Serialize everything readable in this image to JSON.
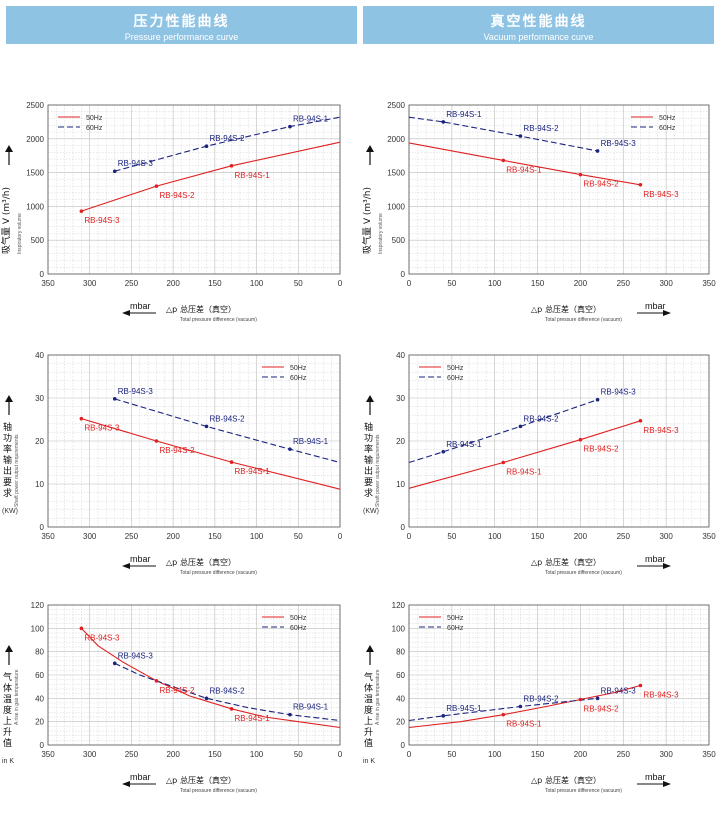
{
  "headers": {
    "left": {
      "zh": "压力性能曲线",
      "en": "Pressure performance curve"
    },
    "right": {
      "zh": "真空性能曲线",
      "en": "Vacuum performance curve"
    }
  },
  "colors": {
    "s50": "#e02020",
    "s60": "#1a237e",
    "grid": "#bdbdbd",
    "header": "#8fc3e4"
  },
  "chart_data": [
    {
      "id": "p1",
      "type": "line",
      "reversed_x": true,
      "xlim": [
        350,
        0
      ],
      "xticks": [
        350,
        300,
        250,
        200,
        150,
        100,
        50,
        0
      ],
      "ylim": [
        0,
        2500
      ],
      "yticks": [
        0,
        500,
        1000,
        1500,
        2000,
        2500
      ],
      "ylabel_zh": "吸气量 V (m³/h)",
      "ylabel_en": "Inspiratory volume",
      "xunit": "mbar",
      "xlabel_symbol": "△p",
      "xlabel_zh": "总压差（真空）",
      "xlabel_en": "Total pressure difference (vacuum)",
      "legend_pos": "top-left",
      "series": [
        {
          "name": "50Hz",
          "style": "solid",
          "points": [
            [
              310,
              930
            ],
            [
              220,
              1300
            ],
            [
              130,
              1600
            ],
            [
              0,
              1950
            ]
          ]
        },
        {
          "name": "60Hz",
          "style": "dashed",
          "points": [
            [
              270,
              1520
            ],
            [
              160,
              1890
            ],
            [
              60,
              2180
            ],
            [
              0,
              2320
            ]
          ]
        }
      ],
      "markers": [
        {
          "series": 0,
          "x": 310,
          "y": 930,
          "label": "RB-94S-3"
        },
        {
          "series": 0,
          "x": 220,
          "y": 1300,
          "label": "RB-94S-2"
        },
        {
          "series": 0,
          "x": 130,
          "y": 1600,
          "label": "RB-94S-1"
        },
        {
          "series": 1,
          "x": 270,
          "y": 1520,
          "label": "RB-94S-3"
        },
        {
          "series": 1,
          "x": 160,
          "y": 1890,
          "label": "RB-94S-2"
        },
        {
          "series": 1,
          "x": 60,
          "y": 2180,
          "label": "RB-94S-1"
        }
      ]
    },
    {
      "id": "v1",
      "type": "line",
      "reversed_x": false,
      "xlim": [
        0,
        350
      ],
      "xticks": [
        0,
        50,
        100,
        150,
        200,
        250,
        300,
        350
      ],
      "ylim": [
        0,
        2500
      ],
      "yticks": [
        0,
        500,
        1000,
        1500,
        2000,
        2500
      ],
      "ylabel_zh": "吸气量 V (m³/h)",
      "ylabel_en": "Inspiratory volume",
      "xunit": "mbar",
      "xlabel_symbol": "△p",
      "xlabel_zh": "总压差（真空）",
      "xlabel_en": "Total pressure difference (vacuum)",
      "legend_pos": "top-right",
      "series": [
        {
          "name": "50Hz",
          "style": "solid",
          "points": [
            [
              0,
              1940
            ],
            [
              110,
              1680
            ],
            [
              200,
              1470
            ],
            [
              270,
              1320
            ]
          ]
        },
        {
          "name": "60Hz",
          "style": "dashed",
          "points": [
            [
              0,
              2320
            ],
            [
              40,
              2250
            ],
            [
              130,
              2040
            ],
            [
              220,
              1820
            ]
          ]
        }
      ],
      "markers": [
        {
          "series": 0,
          "x": 110,
          "y": 1680,
          "label": "RB-94S-1"
        },
        {
          "series": 0,
          "x": 200,
          "y": 1470,
          "label": "RB-94S-2"
        },
        {
          "series": 0,
          "x": 270,
          "y": 1320,
          "label": "RB-94S-3"
        },
        {
          "series": 1,
          "x": 40,
          "y": 2250,
          "label": "RB-94S-1"
        },
        {
          "series": 1,
          "x": 130,
          "y": 2040,
          "label": "RB-94S-2"
        },
        {
          "series": 1,
          "x": 220,
          "y": 1820,
          "label": "RB-94S-3"
        }
      ]
    },
    {
      "id": "p2",
      "type": "line",
      "reversed_x": true,
      "xlim": [
        350,
        0
      ],
      "xticks": [
        350,
        300,
        250,
        200,
        150,
        100,
        50,
        0
      ],
      "ylim": [
        0,
        40
      ],
      "yticks": [
        0,
        10,
        20,
        30,
        40
      ],
      "ylabel_zh": "轴功率输出要求",
      "ylabel_en": "Shaft power output requirements",
      "yunit": "(KW)",
      "xunit": "mbar",
      "xlabel_symbol": "△p",
      "xlabel_zh": "总压差（真空）",
      "xlabel_en": "Total pressure difference (vacuum)",
      "legend_pos": "top-right",
      "series": [
        {
          "name": "50Hz",
          "style": "solid",
          "points": [
            [
              310,
              25.2
            ],
            [
              220,
              20
            ],
            [
              130,
              15.1
            ],
            [
              0,
              8.8
            ]
          ]
        },
        {
          "name": "60Hz",
          "style": "dashed",
          "points": [
            [
              270,
              29.8
            ],
            [
              160,
              23.4
            ],
            [
              60,
              18.1
            ],
            [
              0,
              15
            ]
          ]
        }
      ],
      "markers": [
        {
          "series": 0,
          "x": 310,
          "y": 25.2,
          "label": "RB-94S-3"
        },
        {
          "series": 0,
          "x": 220,
          "y": 20,
          "label": "RB-94S-2"
        },
        {
          "series": 0,
          "x": 130,
          "y": 15.1,
          "label": "RB-94S-1"
        },
        {
          "series": 1,
          "x": 270,
          "y": 29.8,
          "label": "RB-94S-3"
        },
        {
          "series": 1,
          "x": 160,
          "y": 23.4,
          "label": "RB-94S-2"
        },
        {
          "series": 1,
          "x": 60,
          "y": 18.1,
          "label": "RB-94S-1"
        }
      ]
    },
    {
      "id": "v2",
      "type": "line",
      "reversed_x": false,
      "xlim": [
        0,
        350
      ],
      "xticks": [
        0,
        50,
        100,
        150,
        200,
        250,
        300,
        350
      ],
      "ylim": [
        0,
        40
      ],
      "yticks": [
        0,
        10,
        20,
        30,
        40
      ],
      "ylabel_zh": "轴功率输出要求",
      "ylabel_en": "Shaft power output requirements",
      "yunit": "(KW)",
      "xunit": "mbar",
      "xlabel_symbol": "△p",
      "xlabel_zh": "总压差（真空）",
      "xlabel_en": "Total pressure difference (vacuum)",
      "legend_pos": "top-left",
      "series": [
        {
          "name": "50Hz",
          "style": "solid",
          "points": [
            [
              0,
              9
            ],
            [
              110,
              15
            ],
            [
              200,
              20.3
            ],
            [
              270,
              24.7
            ]
          ]
        },
        {
          "name": "60Hz",
          "style": "dashed",
          "points": [
            [
              0,
              15
            ],
            [
              40,
              17.5
            ],
            [
              130,
              23.4
            ],
            [
              220,
              29.6
            ]
          ]
        }
      ],
      "markers": [
        {
          "series": 0,
          "x": 110,
          "y": 15,
          "label": "RB-94S-1"
        },
        {
          "series": 0,
          "x": 200,
          "y": 20.3,
          "label": "RB-94S-2"
        },
        {
          "series": 0,
          "x": 270,
          "y": 24.7,
          "label": "RB-94S-3"
        },
        {
          "series": 1,
          "x": 40,
          "y": 17.5,
          "label": "RB-94S-1"
        },
        {
          "series": 1,
          "x": 130,
          "y": 23.4,
          "label": "RB-94S-2"
        },
        {
          "series": 1,
          "x": 220,
          "y": 29.6,
          "label": "RB-94S-3"
        }
      ]
    },
    {
      "id": "p3",
      "type": "line",
      "reversed_x": true,
      "xlim": [
        350,
        0
      ],
      "xticks": [
        350,
        300,
        250,
        200,
        150,
        100,
        50,
        0
      ],
      "ylim": [
        0,
        120
      ],
      "yticks": [
        0,
        20,
        40,
        60,
        80,
        100,
        120
      ],
      "ylabel_zh": "气体温度上升值",
      "ylabel_en": "A rise in gas temperature",
      "yunit": "in K",
      "xunit": "mbar",
      "xlabel_symbol": "△p",
      "xlabel_zh": "总压差（真空）",
      "xlabel_en": "Total pressure difference (vacuum)",
      "legend_pos": "top-right",
      "series": [
        {
          "name": "50Hz",
          "style": "solid",
          "points": [
            [
              310,
              100
            ],
            [
              290,
              85
            ],
            [
              260,
              71
            ],
            [
              220,
              55
            ],
            [
              180,
              42
            ],
            [
              130,
              31
            ],
            [
              90,
              24
            ],
            [
              40,
              19
            ],
            [
              0,
              15
            ]
          ]
        },
        {
          "name": "60Hz",
          "style": "dashed",
          "points": [
            [
              270,
              70
            ],
            [
              240,
              60
            ],
            [
              200,
              50
            ],
            [
              160,
              40
            ],
            [
              110,
              32
            ],
            [
              60,
              26
            ],
            [
              0,
              21
            ]
          ]
        }
      ],
      "markers": [
        {
          "series": 0,
          "x": 310,
          "y": 100,
          "label": "RB-94S-3"
        },
        {
          "series": 0,
          "x": 220,
          "y": 55,
          "label": "RB-94S-2"
        },
        {
          "series": 0,
          "x": 130,
          "y": 31,
          "label": "RB-94S-1"
        },
        {
          "series": 1,
          "x": 270,
          "y": 70,
          "label": "RB-94S-3"
        },
        {
          "series": 1,
          "x": 160,
          "y": 40,
          "label": "RB-94S-2"
        },
        {
          "series": 1,
          "x": 60,
          "y": 26,
          "label": "RB-94S-1"
        }
      ]
    },
    {
      "id": "v3",
      "type": "line",
      "reversed_x": false,
      "xlim": [
        0,
        350
      ],
      "xticks": [
        0,
        50,
        100,
        150,
        200,
        250,
        300,
        350
      ],
      "ylim": [
        0,
        120
      ],
      "yticks": [
        0,
        20,
        40,
        60,
        80,
        100,
        120
      ],
      "ylabel_zh": "气体温度上升值",
      "ylabel_en": "A rise in gas temperature",
      "yunit": "in K",
      "xunit": "mbar",
      "xlabel_symbol": "△p",
      "xlabel_zh": "总压差（真空）",
      "xlabel_en": "Total pressure difference (vacuum)",
      "legend_pos": "top-left",
      "series": [
        {
          "name": "50Hz",
          "style": "solid",
          "points": [
            [
              0,
              15
            ],
            [
              60,
              20
            ],
            [
              110,
              26
            ],
            [
              160,
              33
            ],
            [
              200,
              39
            ],
            [
              240,
              45
            ],
            [
              270,
              51
            ]
          ]
        },
        {
          "name": "60Hz",
          "style": "dashed",
          "points": [
            [
              0,
              21
            ],
            [
              40,
              25
            ],
            [
              130,
              33
            ],
            [
              220,
              40
            ]
          ]
        }
      ],
      "markers": [
        {
          "series": 0,
          "x": 110,
          "y": 26,
          "label": "RB-94S-1"
        },
        {
          "series": 0,
          "x": 200,
          "y": 39,
          "label": "RB-94S-2"
        },
        {
          "series": 0,
          "x": 270,
          "y": 51,
          "label": "RB-94S-3"
        },
        {
          "series": 1,
          "x": 40,
          "y": 25,
          "label": "RB-94S-1"
        },
        {
          "series": 1,
          "x": 130,
          "y": 33,
          "label": "RB-94S-2"
        },
        {
          "series": 1,
          "x": 220,
          "y": 40,
          "label": "RB-94S-3"
        }
      ]
    }
  ]
}
